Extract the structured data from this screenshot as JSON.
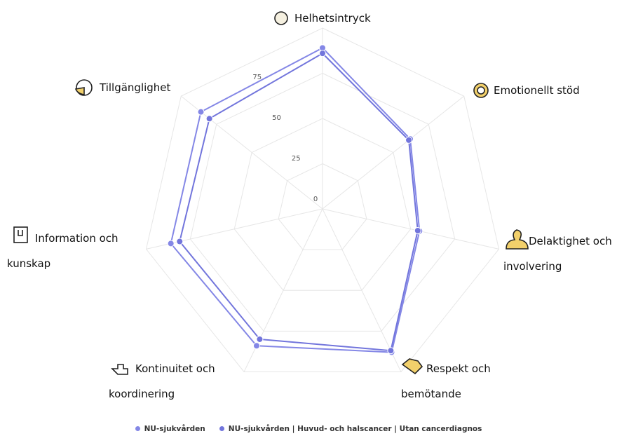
{
  "chart_data": {
    "type": "radar",
    "categories": [
      "Helhetsintryck",
      "Emotionellt stöd",
      "Delaktighet och involvering",
      "Respekt och bemötande",
      "Kontinuitet och koordinering",
      "Information och kunskap",
      "Tillgänglighet"
    ],
    "series": [
      {
        "name": "NU-sjukvården",
        "color": "#8487e6",
        "values": [
          89,
          62,
          55,
          88,
          84,
          86,
          86
        ]
      },
      {
        "name": "NU-sjukvården | Huvud- och halscancer | Utan cancerdiagnos",
        "color": "#7275dc",
        "values": [
          86,
          61,
          54,
          87,
          80,
          81,
          80
        ]
      }
    ],
    "ylim": [
      0,
      100
    ],
    "yticks": [
      0,
      25,
      50,
      75
    ],
    "grid": true
  }
}
